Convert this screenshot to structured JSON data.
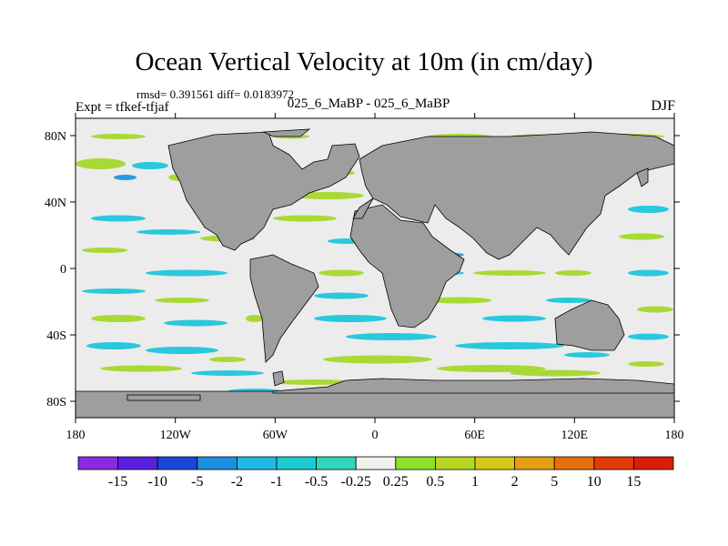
{
  "title": "Ocean Vertical Velocity at 10m (in cm/day)",
  "stats": "rmsd= 0.391561 diff= 0.0183972",
  "experiment": "Expt = tfkef-tfjaf",
  "comparison": "025_6_MaBP - 025_6_MaBP",
  "season": "DJF",
  "lat_ticks": [
    "80N",
    "40N",
    "0",
    "40S",
    "80S"
  ],
  "lon_ticks": [
    "180",
    "120W",
    "60W",
    "0",
    "60E",
    "120E",
    "180"
  ],
  "colorbar": {
    "labels": [
      "-15",
      "-10",
      "-5",
      "-2",
      "-1",
      "-0.5",
      "-0.25",
      "0.25",
      "0.5",
      "1",
      "2",
      "5",
      "10",
      "15"
    ],
    "colors": [
      "#8a2be2",
      "#5a1fdc",
      "#1a46d8",
      "#1d8fe0",
      "#22b8e6",
      "#1ccbd2",
      "#2fd6b8",
      "#f0f0f0",
      "#8fe02a",
      "#b4d81e",
      "#d6c816",
      "#e4a010",
      "#e8700c",
      "#e03a08",
      "#d81e05"
    ]
  },
  "colors": {
    "land": "#9e9e9e",
    "ocean_base": "#ececec",
    "green": "#a4d82a",
    "cyan": "#1fc6dc",
    "blue": "#1d94e2",
    "orange": "#e89a12",
    "yellow": "#d6c816"
  }
}
